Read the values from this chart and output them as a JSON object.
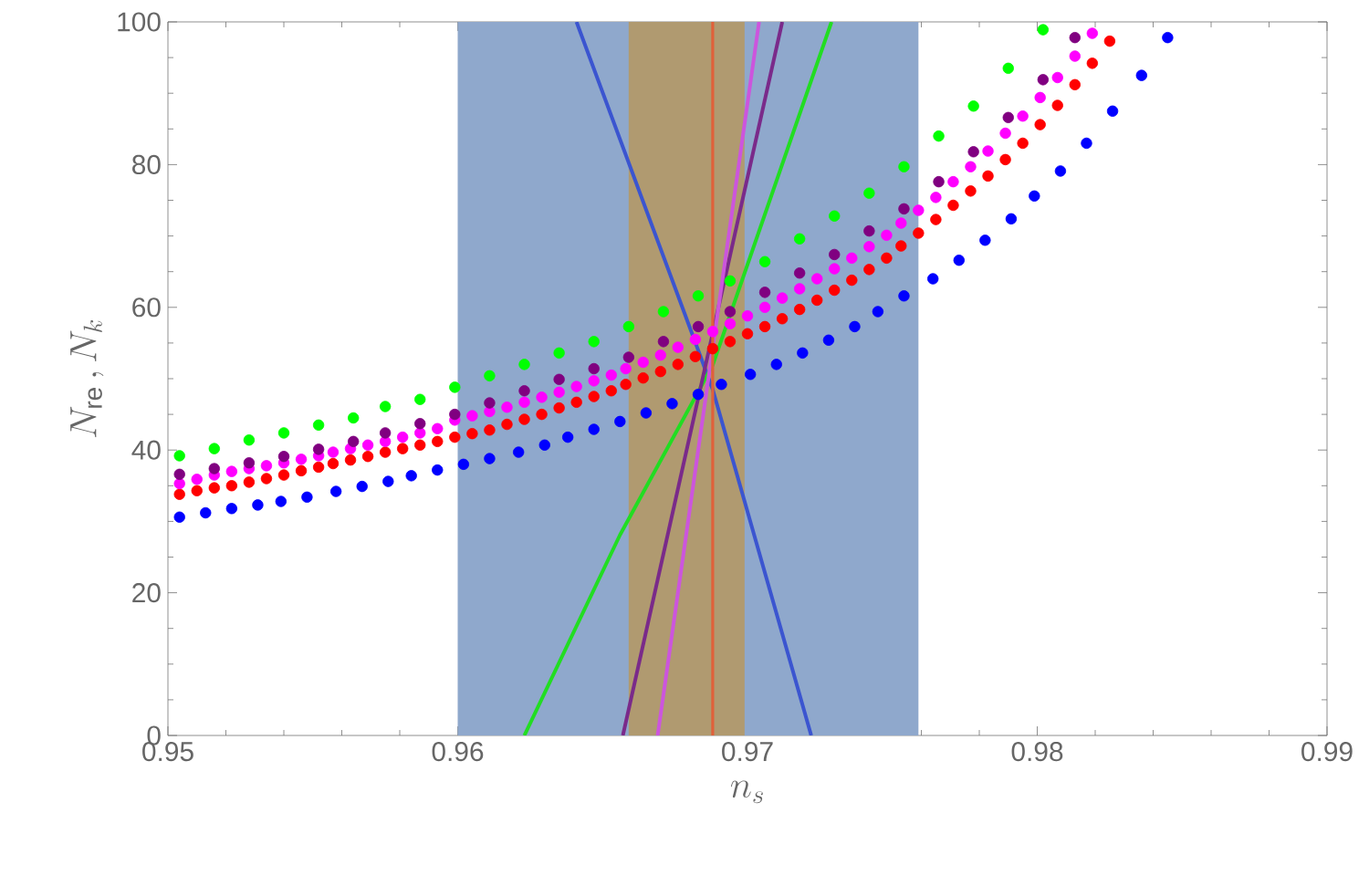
{
  "chart_data": {
    "type": "scatter",
    "xlabel": "n_s",
    "ylabel": "N_{\\mathrm{re}}\\,, N_k",
    "xlim": [
      0.95,
      0.99
    ],
    "ylim": [
      0,
      100
    ],
    "xticks": [
      0.95,
      0.96,
      0.97,
      0.98,
      0.99
    ],
    "yticks": [
      0,
      20,
      40,
      60,
      80,
      100
    ],
    "marker": "circle",
    "grid": false,
    "bands": [
      {
        "axis": "x",
        "from": 0.96,
        "to": 0.9759,
        "color": "#8fa8cc"
      },
      {
        "axis": "x",
        "from": 0.9659,
        "to": 0.9699,
        "color": "#b09a70"
      }
    ],
    "ref_lines": [
      {
        "axis": "x",
        "value": 0.9688,
        "color": "#e0603a"
      }
    ],
    "series": [
      {
        "color": "#ff0000",
        "x": [
          0.9504,
          0.951,
          0.9516,
          0.9522,
          0.9528,
          0.9534,
          0.954,
          0.9546,
          0.9552,
          0.9557,
          0.9563,
          0.9569,
          0.9575,
          0.9581,
          0.9587,
          0.9593,
          0.9599,
          0.9605,
          0.9611,
          0.9617,
          0.9623,
          0.9629,
          0.9635,
          0.9641,
          0.9647,
          0.9653,
          0.9658,
          0.9664,
          0.967,
          0.9676,
          0.9682,
          0.9688,
          0.9694,
          0.97,
          0.9706,
          0.9712,
          0.9718,
          0.9724,
          0.973,
          0.9736,
          0.9742,
          0.9748,
          0.9753,
          0.9759,
          0.9765,
          0.9771,
          0.9777,
          0.9783,
          0.9789,
          0.9795,
          0.9801,
          0.9807,
          0.9813,
          0.9819,
          0.9825
        ],
        "values": [
          33.8,
          34.3,
          34.7,
          35.0,
          35.5,
          36.0,
          36.5,
          37.1,
          37.6,
          38.1,
          38.6,
          39.1,
          39.7,
          40.2,
          40.7,
          41.2,
          41.8,
          42.3,
          42.8,
          43.6,
          44.3,
          45.0,
          45.9,
          46.7,
          47.5,
          48.3,
          49.2,
          50.1,
          51.0,
          52.0,
          53.1,
          54.2,
          55.2,
          56.3,
          57.3,
          58.4,
          59.7,
          61.0,
          62.4,
          63.8,
          65.3,
          66.9,
          68.6,
          70.4,
          72.3,
          74.3,
          76.3,
          78.4,
          80.7,
          83.0,
          85.6,
          88.3,
          91.2,
          94.2,
          97.3
        ]
      },
      {
        "color": "#ff00ff",
        "x": [
          0.9504,
          0.951,
          0.9516,
          0.9522,
          0.9528,
          0.9534,
          0.954,
          0.9546,
          0.9552,
          0.9557,
          0.9563,
          0.9569,
          0.9575,
          0.9581,
          0.9587,
          0.9593,
          0.9599,
          0.9605,
          0.9611,
          0.9617,
          0.9623,
          0.9629,
          0.9635,
          0.9641,
          0.9647,
          0.9653,
          0.9658,
          0.9664,
          0.967,
          0.9676,
          0.9682,
          0.9688,
          0.9694,
          0.97,
          0.9706,
          0.9712,
          0.9718,
          0.9724,
          0.973,
          0.9736,
          0.9742,
          0.9748,
          0.9753,
          0.9759,
          0.9765,
          0.9771,
          0.9777,
          0.9783,
          0.9789,
          0.9795,
          0.9801,
          0.9807,
          0.9813,
          0.9819
        ],
        "values": [
          35.3,
          35.9,
          36.5,
          37.0,
          37.4,
          37.8,
          38.2,
          38.7,
          39.2,
          39.7,
          40.2,
          40.7,
          41.2,
          41.8,
          42.4,
          43.0,
          44.2,
          44.8,
          45.4,
          46.0,
          46.7,
          47.4,
          48.1,
          48.9,
          49.7,
          50.5,
          51.4,
          52.3,
          53.3,
          54.4,
          55.5,
          56.6,
          57.7,
          58.8,
          60.0,
          61.3,
          62.6,
          64.0,
          65.4,
          66.9,
          68.5,
          70.1,
          71.8,
          73.6,
          75.4,
          77.6,
          79.7,
          81.9,
          84.4,
          86.8,
          89.4,
          92.2,
          95.2,
          98.4
        ]
      },
      {
        "color": "#0000ff",
        "x": [
          0.9504,
          0.9513,
          0.9522,
          0.9531,
          0.9539,
          0.9548,
          0.9558,
          0.9567,
          0.9576,
          0.9584,
          0.9593,
          0.9602,
          0.9611,
          0.9621,
          0.963,
          0.9638,
          0.9647,
          0.9656,
          0.9665,
          0.9674,
          0.9683,
          0.9691,
          0.9701,
          0.971,
          0.9719,
          0.9728,
          0.9737,
          0.9745,
          0.9754,
          0.9764,
          0.9773,
          0.9782,
          0.9791,
          0.9799,
          0.9808,
          0.9817,
          0.9826,
          0.9836,
          0.9845
        ],
        "values": [
          30.6,
          31.2,
          31.8,
          32.3,
          32.8,
          33.4,
          34.2,
          34.9,
          35.6,
          36.4,
          37.2,
          38.0,
          38.8,
          39.7,
          40.7,
          41.8,
          42.9,
          44.0,
          45.2,
          46.5,
          47.8,
          49.2,
          50.6,
          52.0,
          53.6,
          55.4,
          57.3,
          59.4,
          61.6,
          64.0,
          66.6,
          69.4,
          72.4,
          75.6,
          79.1,
          83.0,
          87.5,
          92.5,
          97.8
        ]
      },
      {
        "color": "#00ff00",
        "x": [
          0.9504,
          0.9516,
          0.9528,
          0.954,
          0.9552,
          0.9564,
          0.9575,
          0.9587,
          0.9599,
          0.9611,
          0.9623,
          0.9635,
          0.9647,
          0.9659,
          0.9671,
          0.9683,
          0.9694,
          0.9706,
          0.9718,
          0.973,
          0.9742,
          0.9754,
          0.9766,
          0.9778,
          0.979,
          0.9802
        ],
        "values": [
          39.2,
          40.2,
          41.4,
          42.4,
          43.5,
          44.5,
          46.1,
          47.1,
          48.8,
          50.4,
          52.0,
          53.6,
          55.2,
          57.3,
          59.4,
          61.6,
          63.7,
          66.4,
          69.6,
          72.8,
          76.0,
          79.7,
          84.0,
          88.2,
          93.5,
          98.9
        ]
      },
      {
        "color": "#800080",
        "x": [
          0.9504,
          0.9516,
          0.9528,
          0.954,
          0.9552,
          0.9564,
          0.9575,
          0.9587,
          0.9599,
          0.9611,
          0.9623,
          0.9635,
          0.9647,
          0.9659,
          0.9671,
          0.9683,
          0.9694,
          0.9706,
          0.9718,
          0.973,
          0.9742,
          0.9754,
          0.9766,
          0.9778,
          0.979,
          0.9802,
          0.9813
        ],
        "values": [
          36.6,
          37.4,
          38.2,
          39.1,
          40.1,
          41.2,
          42.4,
          43.7,
          45.0,
          46.6,
          48.3,
          49.9,
          51.4,
          53.0,
          55.2,
          57.3,
          59.4,
          62.1,
          64.8,
          67.4,
          70.7,
          73.8,
          77.6,
          81.8,
          86.6,
          91.9,
          97.8
        ]
      },
      {
        "type": "line",
        "marker": "none",
        "color": "#3b55d0",
        "x": [
          0.9641,
          0.9688,
          0.9722
        ],
        "values": [
          100,
          48.5,
          0
        ]
      },
      {
        "type": "line",
        "marker": "none",
        "color": "#22dd22",
        "x": [
          0.9623,
          0.9656,
          0.9688,
          0.9729
        ],
        "values": [
          0,
          28.1,
          51.9,
          100
        ]
      },
      {
        "type": "line",
        "marker": "none",
        "color": "#7a2a8a",
        "x": [
          0.9657,
          0.9712
        ],
        "values": [
          0,
          100
        ]
      },
      {
        "type": "line",
        "marker": "none",
        "color": "#cc55dd",
        "x": [
          0.9669,
          0.9704
        ],
        "values": [
          0,
          100
        ]
      }
    ]
  }
}
